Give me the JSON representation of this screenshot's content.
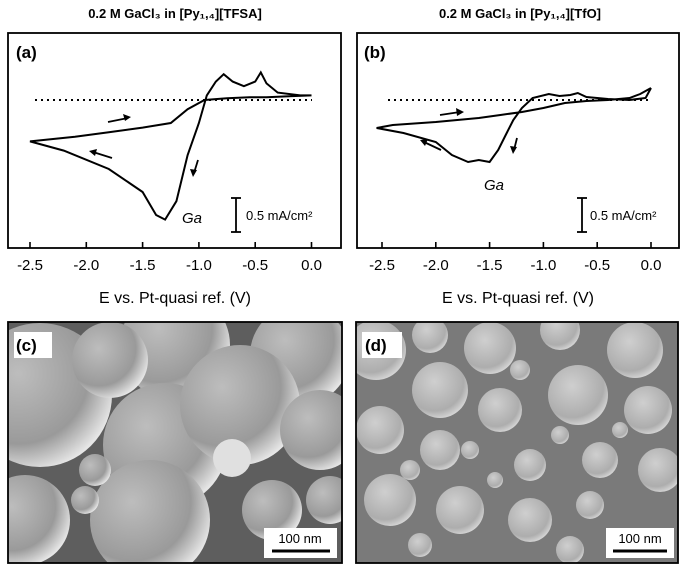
{
  "figure": {
    "panels": {
      "a": {
        "title": "0.2 M GaCl₃ in [Py₁,₄][TFSA]",
        "label": "(a)",
        "annotation": "Ga",
        "scale_bar": "0.5 mA/cm²"
      },
      "b": {
        "title": "0.2 M GaCl₃ in [Py₁,₄][TfO]",
        "label": "(b)",
        "annotation": "Ga",
        "scale_bar": "0.5 mA/cm²"
      },
      "c": {
        "label": "(c)",
        "scale_bar": "100 nm"
      },
      "d": {
        "label": "(d)",
        "scale_bar": "100 nm"
      }
    }
  },
  "chart_data": [
    {
      "type": "line",
      "title": "0.2 M GaCl₃ in [Py₁,₄][TFSA]",
      "xlabel": "E vs. Pt-quasi ref. (V)",
      "ylabel": "",
      "xlim": [
        -2.6,
        0.1
      ],
      "xticks": [
        "-2.5",
        "-2.0",
        "-1.5",
        "-1.0",
        "-0.5",
        "0.0"
      ],
      "grid": false,
      "y_units": "mA/cm²",
      "series": [
        {
          "x": [
            0.0,
            -0.2,
            -0.4,
            -0.55,
            -0.75,
            -0.95,
            -1.1,
            -1.25,
            -1.5,
            -1.8,
            -2.1,
            -2.5,
            -2.2,
            -1.8,
            -1.5,
            -1.38,
            -1.3,
            -1.2,
            -1.1,
            -1.0,
            -0.93,
            -0.85,
            -0.78,
            -0.7,
            -0.6,
            -0.5,
            -0.45,
            -0.4,
            -0.3,
            -0.1,
            0.0
          ],
          "y": [
            0.05,
            0.04,
            0.03,
            0.03,
            0.02,
            0.0,
            -0.1,
            -0.25,
            -0.3,
            -0.35,
            -0.4,
            -0.45,
            -0.55,
            -0.75,
            -1.0,
            -1.25,
            -1.3,
            -1.1,
            -0.6,
            -0.25,
            0.05,
            0.2,
            0.28,
            0.2,
            0.15,
            0.2,
            0.3,
            0.18,
            0.08,
            0.05,
            0.05
          ]
        }
      ],
      "annotations": [
        "(a)",
        "Ga",
        "0.5 mA/cm²"
      ]
    },
    {
      "type": "line",
      "title": "0.2 M GaCl₃ in [Py₁,₄][TfO]",
      "xlabel": "E vs. Pt-quasi ref. (V)",
      "ylabel": "",
      "xlim": [
        -2.6,
        0.1
      ],
      "xticks": [
        "-2.5",
        "-2.0",
        "-1.5",
        "-1.0",
        "-0.5",
        "0.0"
      ],
      "grid": false,
      "y_units": "mA/cm²",
      "series": [
        {
          "x": [
            0.0,
            -0.1,
            -0.2,
            -0.4,
            -0.6,
            -0.8,
            -1.0,
            -1.2,
            -1.4,
            -1.6,
            -2.0,
            -2.4,
            -2.55,
            -2.3,
            -2.0,
            -1.85,
            -1.7,
            -1.6,
            -1.5,
            -1.42,
            -1.35,
            -1.28,
            -1.2,
            -1.1,
            -0.95,
            -0.85,
            -0.75,
            -0.68,
            -0.6,
            -0.4,
            -0.2,
            -0.05,
            0.0
          ],
          "y": [
            0.12,
            0.06,
            0.02,
            0.0,
            -0.01,
            -0.03,
            -0.08,
            -0.12,
            -0.15,
            -0.18,
            -0.22,
            -0.25,
            -0.28,
            -0.33,
            -0.42,
            -0.55,
            -0.62,
            -0.6,
            -0.62,
            -0.5,
            -0.35,
            -0.2,
            -0.08,
            0.02,
            0.06,
            0.04,
            0.05,
            0.07,
            0.03,
            0.01,
            0.0,
            0.02,
            0.12
          ]
        }
      ],
      "annotations": [
        "(b)",
        "Ga",
        "0.5 mA/cm²"
      ]
    }
  ],
  "colors": {
    "line": "#000000",
    "sem_background": "#6b6b6b",
    "sem_particle": "#b0b0b0",
    "sem_highlight": "#e8e8e8"
  }
}
